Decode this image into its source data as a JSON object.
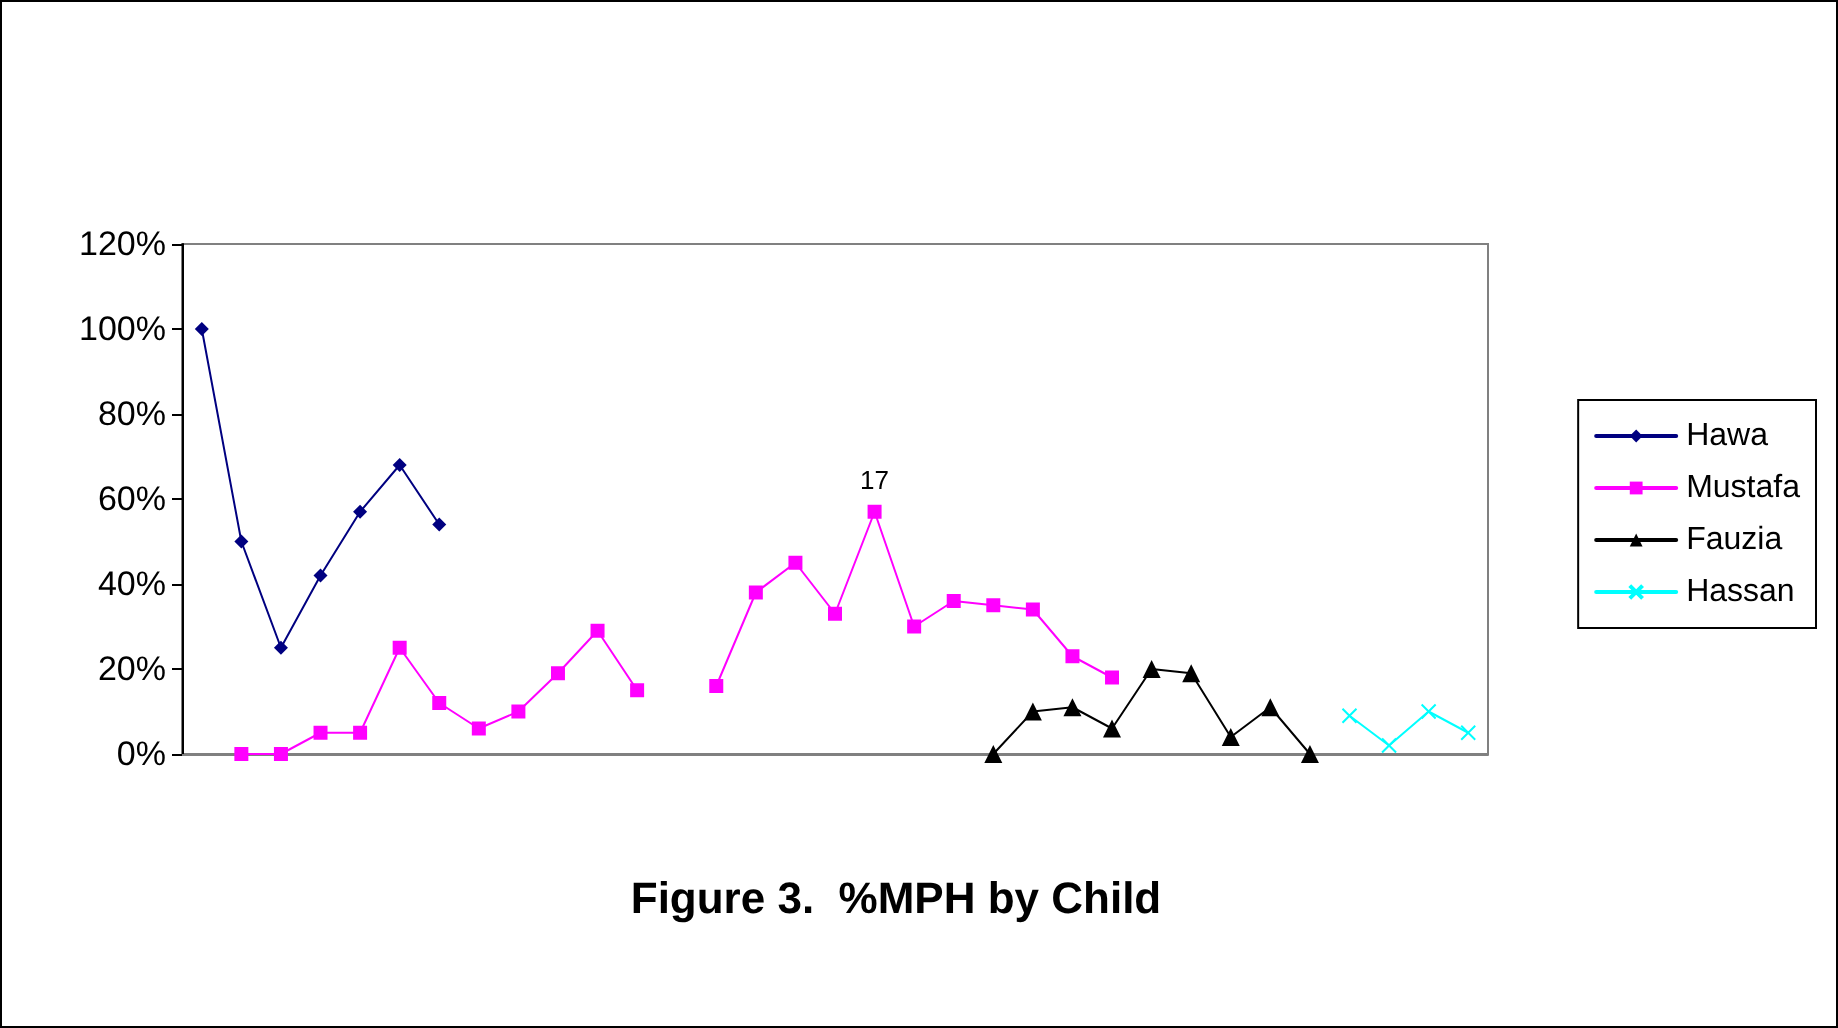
{
  "chart_data": {
    "type": "line",
    "title": "Figure 3.  %MPH by Child",
    "categories": [
      null,
      null,
      null,
      null,
      null,
      null,
      null,
      null,
      null,
      null,
      null,
      null,
      null,
      null,
      null,
      null,
      null,
      null,
      null,
      null,
      null,
      null,
      null,
      null,
      null,
      null,
      null,
      null,
      null,
      null,
      null,
      null,
      null
    ],
    "series": [
      {
        "name": "Hawa",
        "color": "#000080",
        "marker": "diamond",
        "values": [
          100,
          50,
          25,
          42,
          57,
          68,
          54,
          null,
          null,
          null,
          null,
          null,
          null,
          null,
          null,
          null,
          null,
          null,
          null,
          null,
          null,
          null,
          null,
          null,
          null,
          null,
          null,
          null,
          null,
          null,
          null,
          null,
          null
        ]
      },
      {
        "name": "Mustafa",
        "color": "#ff00ff",
        "marker": "square",
        "values": [
          null,
          0,
          0,
          5,
          5,
          25,
          12,
          6,
          10,
          19,
          29,
          15,
          null,
          16,
          38,
          45,
          33,
          57,
          30,
          36,
          35,
          34,
          23,
          18,
          null,
          null,
          null,
          null,
          null,
          null,
          null,
          null,
          null
        ]
      },
      {
        "name": "Fauzia",
        "color": "#000000",
        "marker": "triangle",
        "values": [
          null,
          null,
          null,
          null,
          null,
          null,
          null,
          null,
          null,
          null,
          null,
          null,
          null,
          null,
          null,
          null,
          null,
          null,
          null,
          null,
          0,
          10,
          11,
          6,
          20,
          19,
          4,
          11,
          0,
          null,
          null,
          null,
          null
        ]
      },
      {
        "name": "Hassan",
        "color": "#00ffff",
        "marker": "cross",
        "values": [
          null,
          null,
          null,
          null,
          null,
          null,
          null,
          null,
          null,
          null,
          null,
          null,
          null,
          null,
          null,
          null,
          null,
          null,
          null,
          null,
          null,
          null,
          null,
          null,
          null,
          null,
          null,
          null,
          null,
          9,
          2,
          10,
          5
        ]
      }
    ],
    "ylim": [
      0,
      120
    ],
    "yticks": [
      {
        "value": 0,
        "label": "0%"
      },
      {
        "value": 20,
        "label": "20%"
      },
      {
        "value": 40,
        "label": "40%"
      },
      {
        "value": 60,
        "label": "60%"
      },
      {
        "value": 80,
        "label": "80%"
      },
      {
        "value": 100,
        "label": "100%"
      },
      {
        "value": 120,
        "label": "120%"
      }
    ],
    "annotations": [
      {
        "text": "17",
        "y": 57
      }
    ],
    "grid": false,
    "legend": "right",
    "line_style": "solid"
  }
}
